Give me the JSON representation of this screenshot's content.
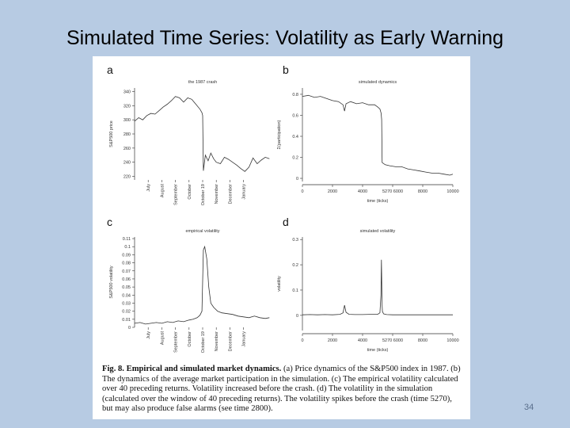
{
  "slide": {
    "title": "Simulated Time Series: Volatility as Early Warning",
    "page_number": "34"
  },
  "caption": {
    "label": "Fig. 8.",
    "heading": "Empirical and simulated market dynamics.",
    "text": "(a) Price dynamics of the S&P500 index in 1987. (b) The dynamics of the average market participation in the simulation. (c) The empirical volatility calculated over 40 preceding returns. Volatility increased before the crash. (d) The volatility in the simulation (calculated over the window of 40 preceding returns). The volatility spikes before the crash (time 5270), but may also produce false alarms (see time 2800)."
  },
  "chart_data": [
    {
      "panel": "a",
      "type": "line",
      "title": "the 1987 crash",
      "xlabel": "",
      "ylabel": "S&P500 price",
      "ylim": [
        215,
        345
      ],
      "yticks": [
        220,
        240,
        260,
        280,
        300,
        320,
        340
      ],
      "xlim": [
        0,
        10
      ],
      "xtick_pos": [
        1,
        2,
        3,
        4,
        5,
        6,
        7,
        8
      ],
      "xtick_labels": [
        "July",
        "August",
        "September",
        "October",
        "October 19",
        "November",
        "December",
        "January"
      ],
      "series": [
        {
          "x": [
            0,
            0.3,
            0.6,
            0.9,
            1.2,
            1.5,
            1.8,
            2.1,
            2.4,
            2.7,
            3.0,
            3.3,
            3.6,
            3.9,
            4.2,
            4.5,
            4.8,
            4.95,
            5.0,
            5.05,
            5.2,
            5.4,
            5.6,
            5.8,
            6.0,
            6.3,
            6.6,
            6.9,
            7.2,
            7.5,
            7.8,
            8.1,
            8.4,
            8.7,
            9.0,
            9.3,
            9.6,
            9.9
          ],
          "values": [
            298,
            303,
            300,
            306,
            309,
            308,
            313,
            318,
            322,
            327,
            333,
            331,
            325,
            331,
            329,
            322,
            315,
            310,
            306,
            228,
            250,
            242,
            253,
            245,
            240,
            238,
            247,
            244,
            240,
            236,
            231,
            227,
            233,
            246,
            238,
            243,
            247,
            245
          ]
        }
      ]
    },
    {
      "panel": "b",
      "type": "line",
      "title": "simulated dynamics",
      "xlabel": "time (ticks)",
      "ylabel": "Σ(participation)",
      "ylim": [
        -0.03,
        0.86
      ],
      "yticks": [
        0.0,
        0.2,
        0.4,
        0.6,
        0.8
      ],
      "xlim": [
        0,
        10000
      ],
      "xticks": [
        0,
        2000,
        4000,
        6000,
        8000,
        10000
      ],
      "xtick_labels": [
        "0",
        "2000",
        "4000",
        "5270 6000",
        "8000",
        "10000"
      ],
      "marker": 5270,
      "series": [
        {
          "x": [
            0,
            400,
            800,
            1200,
            1600,
            2000,
            2400,
            2700,
            2800,
            2900,
            3200,
            3600,
            4000,
            4400,
            4800,
            5000,
            5150,
            5230,
            5270,
            5300,
            5500,
            5800,
            6200,
            6600,
            7000,
            7400,
            7800,
            8200,
            8600,
            9000,
            9400,
            9800,
            10000
          ],
          "values": [
            0.78,
            0.79,
            0.77,
            0.78,
            0.76,
            0.74,
            0.73,
            0.7,
            0.64,
            0.71,
            0.73,
            0.71,
            0.72,
            0.7,
            0.7,
            0.68,
            0.66,
            0.62,
            0.56,
            0.15,
            0.13,
            0.12,
            0.11,
            0.11,
            0.09,
            0.08,
            0.07,
            0.06,
            0.05,
            0.05,
            0.04,
            0.03,
            0.04
          ]
        }
      ]
    },
    {
      "panel": "c",
      "type": "line",
      "title": "empirical volatility",
      "xlabel": "",
      "ylabel": "S&P500 volatility",
      "ylim": [
        0.0,
        0.112
      ],
      "yticks": [
        0.0,
        0.01,
        0.02,
        0.03,
        0.04,
        0.05,
        0.06,
        0.07,
        0.08,
        0.09,
        0.1,
        0.11
      ],
      "xlim": [
        0,
        10
      ],
      "xtick_pos": [
        1,
        2,
        3,
        4,
        5,
        6,
        7,
        8
      ],
      "xtick_labels": [
        "July",
        "August",
        "September",
        "October",
        "October 19",
        "November",
        "December",
        "January"
      ],
      "series": [
        {
          "x": [
            0,
            0.4,
            0.8,
            1.2,
            1.6,
            2.0,
            2.4,
            2.8,
            3.2,
            3.6,
            4.0,
            4.3,
            4.6,
            4.8,
            4.95,
            5.05,
            5.15,
            5.3,
            5.45,
            5.6,
            5.8,
            6.1,
            6.4,
            6.8,
            7.2,
            7.6,
            8.0,
            8.4,
            8.8,
            9.2,
            9.6,
            9.9
          ],
          "values": [
            0.005,
            0.006,
            0.004,
            0.005,
            0.006,
            0.005,
            0.007,
            0.006,
            0.008,
            0.007,
            0.009,
            0.01,
            0.012,
            0.015,
            0.02,
            0.096,
            0.1,
            0.085,
            0.05,
            0.03,
            0.025,
            0.02,
            0.018,
            0.017,
            0.016,
            0.014,
            0.013,
            0.012,
            0.014,
            0.012,
            0.011,
            0.012
          ]
        }
      ]
    },
    {
      "panel": "d",
      "type": "line",
      "title": "simulated volatility",
      "xlabel": "time (ticks)",
      "ylabel": "volatility",
      "ylim": [
        -0.06,
        0.31
      ],
      "yticks": [
        0.0,
        0.1,
        0.2,
        0.3
      ],
      "xlim": [
        0,
        10000
      ],
      "xticks": [
        0,
        2000,
        4000,
        6000,
        8000,
        10000
      ],
      "xtick_labels": [
        "0",
        "2000",
        "4000",
        "5270 6000",
        "8000",
        "10000"
      ],
      "marker": 5270,
      "series": [
        {
          "x": [
            0,
            500,
            1000,
            1500,
            2000,
            2500,
            2700,
            2800,
            2900,
            3100,
            3500,
            4000,
            4500,
            5000,
            5150,
            5220,
            5250,
            5270,
            5290,
            5320,
            5400,
            5600,
            6000,
            6500,
            7000,
            7500,
            8000,
            8500,
            9000,
            9500,
            10000
          ],
          "values": [
            0.002,
            0.003,
            0.002,
            0.003,
            0.002,
            0.004,
            0.01,
            0.04,
            0.012,
            0.004,
            0.003,
            0.003,
            0.004,
            0.004,
            0.01,
            0.08,
            0.22,
            0.16,
            0.05,
            0.015,
            0.006,
            0.003,
            0.002,
            0.002,
            0.002,
            0.002,
            0.002,
            0.002,
            0.002,
            0.002,
            0.002
          ]
        }
      ]
    }
  ]
}
